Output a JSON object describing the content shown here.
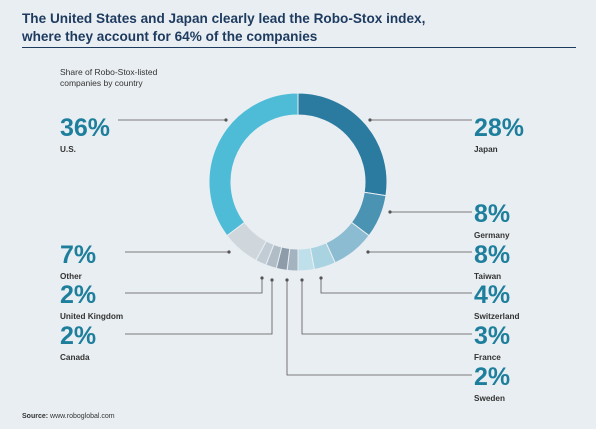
{
  "title": {
    "line1": "The United States and Japan clearly lead the Robo-Stox index,",
    "line2": "where they account for 64% of the companies"
  },
  "subtitle": {
    "line1": "Share of Robo-Stox-listed",
    "line2": "companies by country"
  },
  "source": {
    "label": "Source:",
    "text": "www.roboglobal.com"
  },
  "colors": {
    "background": "#e9eef2",
    "title": "#1d3a5f",
    "value_text": "#1e7f9c",
    "name_text": "#333333",
    "leader": "#555555"
  },
  "chart_data": {
    "type": "pie",
    "donut": true,
    "start": "12 o'clock",
    "direction": "clockwise",
    "slices": [
      {
        "name": "Japan",
        "value": 28,
        "label": "28%",
        "color": "#2b7ba0",
        "side": "right"
      },
      {
        "name": "Germany",
        "value": 8,
        "label": "8%",
        "color": "#4a93b3",
        "side": "right"
      },
      {
        "name": "Taiwan",
        "value": 8,
        "label": "8%",
        "color": "#8cbcd1",
        "side": "right"
      },
      {
        "name": "Switzerland",
        "value": 4,
        "label": "4%",
        "color": "#a9d3e1",
        "side": "right"
      },
      {
        "name": "France",
        "value": 3,
        "label": "3%",
        "color": "#bfe0ea",
        "side": "right"
      },
      {
        "name": "Sweden",
        "value": 2,
        "label": "2%",
        "color": "#a3b3bf",
        "side": "right"
      },
      {
        "name": "",
        "value": 2,
        "label": "",
        "color": "#8d9ca8"
      },
      {
        "name": "Canada",
        "value": 2,
        "label": "2%",
        "color": "#b0bcc6",
        "side": "left"
      },
      {
        "name": "United Kingdom",
        "value": 2,
        "label": "2%",
        "color": "#c1ccd4",
        "side": "left"
      },
      {
        "name": "Other",
        "value": 7,
        "label": "7%",
        "color": "#cfd7dd",
        "side": "left"
      },
      {
        "name": "U.S.",
        "value": 36,
        "label": "36%",
        "color": "#4ebcd7",
        "side": "left"
      }
    ]
  }
}
